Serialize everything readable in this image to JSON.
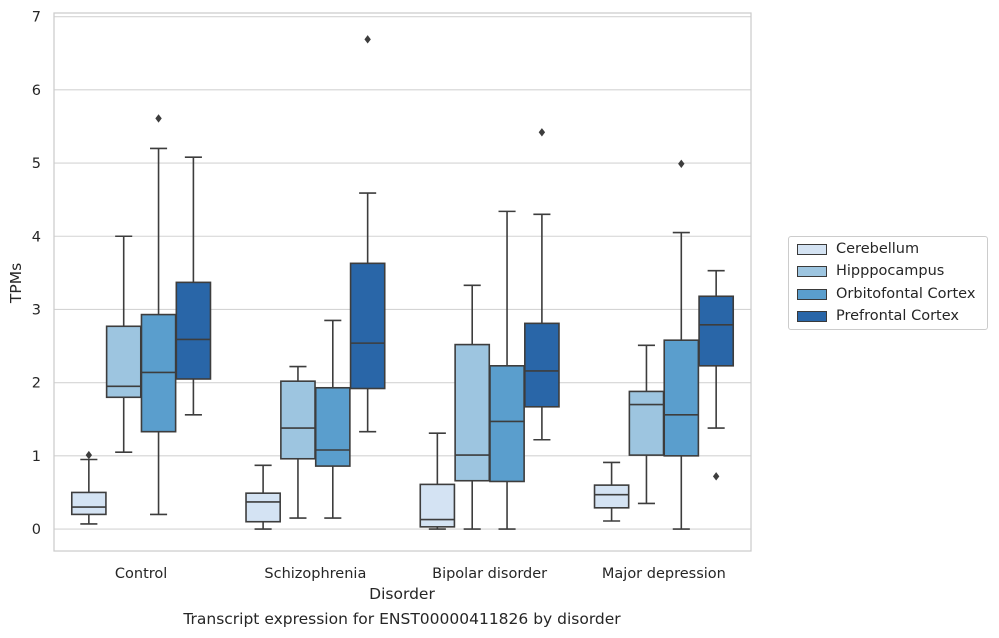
{
  "caption": "Transcript expression for ENST00000411826 by disorder",
  "chart_data": {
    "type": "box",
    "xlabel": "Disorder",
    "ylabel": "TPMs",
    "ylim": [
      -0.3,
      7.05
    ],
    "yticks": [
      0,
      1,
      2,
      3,
      4,
      5,
      6,
      7
    ],
    "grid": true,
    "legend_position": "right",
    "categories": [
      "Control",
      "Schizophrenia",
      "Bipolar disorder",
      "Major depression"
    ],
    "series": [
      {
        "name": "Cerebellum",
        "color": "#d4e3f3",
        "boxes": [
          {
            "whislo": 0.07,
            "q1": 0.2,
            "med": 0.3,
            "q3": 0.5,
            "whishi": 0.95,
            "fliers": [
              1.01
            ]
          },
          {
            "whislo": 0.0,
            "q1": 0.1,
            "med": 0.37,
            "q3": 0.49,
            "whishi": 0.87,
            "fliers": []
          },
          {
            "whislo": 0.0,
            "q1": 0.03,
            "med": 0.13,
            "q3": 0.61,
            "whishi": 1.31,
            "fliers": []
          },
          {
            "whislo": 0.11,
            "q1": 0.29,
            "med": 0.47,
            "q3": 0.6,
            "whishi": 0.91,
            "fliers": []
          }
        ]
      },
      {
        "name": "Hipppocampus",
        "color": "#9dc5e0",
        "boxes": [
          {
            "whislo": 1.05,
            "q1": 1.8,
            "med": 1.95,
            "q3": 2.77,
            "whishi": 4.0,
            "fliers": []
          },
          {
            "whislo": 0.15,
            "q1": 0.96,
            "med": 1.38,
            "q3": 2.02,
            "whishi": 2.22,
            "fliers": []
          },
          {
            "whislo": 0.0,
            "q1": 0.66,
            "med": 1.01,
            "q3": 2.52,
            "whishi": 3.33,
            "fliers": []
          },
          {
            "whislo": 0.35,
            "q1": 1.01,
            "med": 1.7,
            "q3": 1.88,
            "whishi": 2.51,
            "fliers": []
          }
        ]
      },
      {
        "name": "Orbitofontal Cortex",
        "color": "#5a9ecd",
        "boxes": [
          {
            "whislo": 0.2,
            "q1": 1.33,
            "med": 2.14,
            "q3": 2.93,
            "whishi": 5.2,
            "fliers": [
              5.61
            ]
          },
          {
            "whislo": 0.15,
            "q1": 0.86,
            "med": 1.08,
            "q3": 1.93,
            "whishi": 2.85,
            "fliers": []
          },
          {
            "whislo": 0.0,
            "q1": 0.65,
            "med": 1.47,
            "q3": 2.23,
            "whishi": 4.34,
            "fliers": []
          },
          {
            "whislo": 0.0,
            "q1": 1.0,
            "med": 1.56,
            "q3": 2.58,
            "whishi": 4.05,
            "fliers": [
              4.99
            ]
          }
        ]
      },
      {
        "name": "Prefrontal Cortex",
        "color": "#2966a8",
        "boxes": [
          {
            "whislo": 1.56,
            "q1": 2.05,
            "med": 2.59,
            "q3": 3.37,
            "whishi": 5.08,
            "fliers": []
          },
          {
            "whislo": 1.33,
            "q1": 1.92,
            "med": 2.54,
            "q3": 3.63,
            "whishi": 4.59,
            "fliers": [
              6.69
            ]
          },
          {
            "whislo": 1.22,
            "q1": 1.67,
            "med": 2.16,
            "q3": 2.81,
            "whishi": 4.3,
            "fliers": [
              5.42
            ]
          },
          {
            "whislo": 1.38,
            "q1": 2.23,
            "med": 2.79,
            "q3": 3.18,
            "whishi": 3.53,
            "fliers": [
              0.72
            ]
          }
        ]
      }
    ]
  }
}
